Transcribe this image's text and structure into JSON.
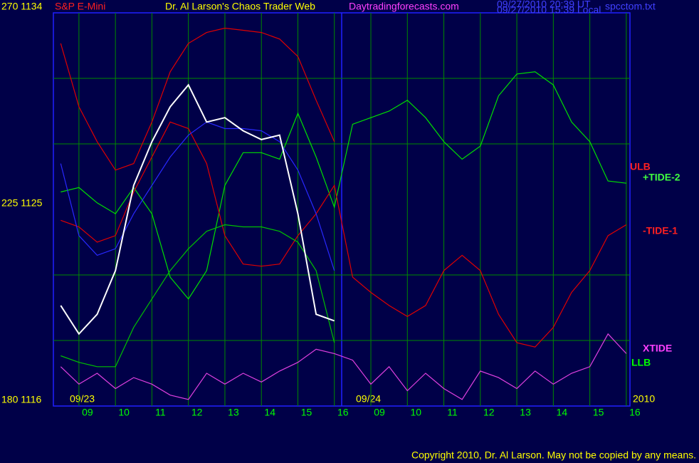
{
  "chart_data": {
    "type": "line",
    "title": "S&P E-Mini",
    "subtitle": "Dr. Al Larson's Chaos Trader Web",
    "site": "Daytradingforecasts.com",
    "timestamps": [
      "09/27/2010 20:39 UT",
      "09/27/2010 15:39 Local"
    ],
    "file": "spcctom.txt",
    "dates": [
      "09/23",
      "09/24",
      "2010"
    ],
    "copyright": "Copyright 2010, Dr. Al Larson. May not be copied by any means.",
    "xlim": [
      -0.7,
      15.1
    ],
    "ylim": [
      1116,
      1134
    ],
    "yticks": [
      {
        "value": 1134,
        "label": "270 1134"
      },
      {
        "value": 1125,
        "label": "225 1125"
      },
      {
        "value": 1116,
        "label": "180 1116"
      }
    ],
    "ygrid": [
      1131,
      1128,
      1122,
      1119
    ],
    "xticks": [
      {
        "value": 0,
        "label": "09"
      },
      {
        "value": 1,
        "label": "10"
      },
      {
        "value": 2,
        "label": "11"
      },
      {
        "value": 3,
        "label": "12"
      },
      {
        "value": 4,
        "label": "13"
      },
      {
        "value": 5,
        "label": "14"
      },
      {
        "value": 6,
        "label": "15"
      },
      {
        "value": 7,
        "label": "16"
      },
      {
        "value": 8,
        "label": "09"
      },
      {
        "value": 9,
        "label": "10"
      },
      {
        "value": 10,
        "label": "11"
      },
      {
        "value": 11,
        "label": "12"
      },
      {
        "value": 12,
        "label": "13"
      },
      {
        "value": 13,
        "label": "14"
      },
      {
        "value": 14,
        "label": "15"
      },
      {
        "value": 15,
        "label": "16"
      }
    ],
    "grid": true,
    "x": [
      -0.5,
      0,
      0.5,
      1,
      1.5,
      2,
      2.5,
      3,
      3.5,
      4,
      4.5,
      5,
      5.5,
      6,
      6.5,
      7,
      7.5,
      8,
      8.5,
      9,
      9.5,
      10,
      10.5,
      11,
      11.5,
      12,
      12.5,
      13,
      13.5,
      14,
      14.5,
      15
    ],
    "series": [
      {
        "name": "ULB",
        "color": "#e00000",
        "values": [
          1132.6,
          1129.7,
          1128.1,
          1126.8,
          1127.1,
          1129.0,
          1131.3,
          1132.6,
          1133.1,
          1133.3,
          1133.2,
          1133.1,
          1132.8,
          1132.0,
          1130.0,
          1128.1,
          null,
          null,
          null,
          null,
          null,
          null,
          null,
          null,
          null,
          null,
          null,
          null,
          null,
          null,
          null,
          null
        ]
      },
      {
        "name": "+TIDE-2",
        "color": "#00e000",
        "values": [
          1125.8,
          1126.0,
          1125.3,
          1124.8,
          1126.0,
          1124.8,
          1121.9,
          1120.9,
          1122.2,
          1126.1,
          1127.6,
          1127.6,
          1127.3,
          1129.4,
          1127.4,
          1125.1,
          1128.9,
          1129.2,
          1129.5,
          1130.0,
          1129.2,
          1128.1,
          1127.3,
          1127.9,
          1130.2,
          1131.2,
          1131.3,
          1130.7,
          1129.0,
          1128.1,
          1126.3,
          1126.2
        ]
      },
      {
        "name": "-TIDE-1",
        "color": "#e00000",
        "values": [
          1124.5,
          1124.2,
          1123.5,
          1123.8,
          1125.8,
          1127.4,
          1129.0,
          1128.7,
          1127.1,
          1123.8,
          1122.5,
          1122.4,
          1122.5,
          1123.8,
          1124.8,
          1126.1,
          1121.9,
          1121.2,
          1120.6,
          1120.1,
          1120.6,
          1122.2,
          1122.9,
          1122.2,
          1120.2,
          1118.9,
          1118.7,
          1119.6,
          1121.2,
          1122.2,
          1123.8,
          1124.3
        ]
      },
      {
        "name": "XTIDE",
        "color": "#e040e0",
        "values": [
          1117.8,
          1117.0,
          1117.5,
          1116.8,
          1117.3,
          1117.0,
          1116.5,
          1116.3,
          1117.5,
          1117.0,
          1117.5,
          1117.1,
          1117.6,
          1118.0,
          1118.6,
          1118.4,
          1118.1,
          1117.0,
          1117.8,
          1116.7,
          1117.5,
          1116.8,
          1116.3,
          1117.6,
          1117.3,
          1116.8,
          1117.6,
          1117.0,
          1117.5,
          1117.8,
          1119.3,
          1118.4
        ]
      },
      {
        "name": "LLB",
        "color": "#00c000",
        "values": [
          1118.3,
          1118.0,
          1117.8,
          1117.8,
          1119.6,
          1120.9,
          1122.2,
          1123.2,
          1124.0,
          1124.3,
          1124.2,
          1124.2,
          1124.0,
          1123.5,
          1122.2,
          1118.9,
          null,
          null,
          null,
          null,
          null,
          null,
          null,
          null,
          null,
          null,
          null,
          null,
          null,
          null,
          null,
          null
        ]
      },
      {
        "color": "#2828ff",
        "values": [
          1127.1,
          1123.8,
          1122.9,
          1123.2,
          1124.8,
          1126.1,
          1127.4,
          1128.4,
          1129.0,
          1128.7,
          1128.7,
          1128.6,
          1128.1,
          1126.8,
          1124.8,
          1122.2,
          null,
          null,
          null,
          null,
          null,
          null,
          null,
          null,
          null,
          null,
          null,
          null,
          null,
          null,
          null,
          null
        ]
      },
      {
        "color": "#ffffff",
        "values": [
          1120.6,
          1119.3,
          1120.2,
          1122.2,
          1126.1,
          1128.1,
          1129.7,
          1130.7,
          1129.0,
          1129.2,
          1128.6,
          1128.2,
          1128.4,
          1124.8,
          1120.2,
          1119.9,
          null,
          null,
          null,
          null,
          null,
          null,
          null,
          null,
          null,
          null,
          null,
          null,
          null,
          null,
          null,
          null
        ]
      }
    ]
  }
}
